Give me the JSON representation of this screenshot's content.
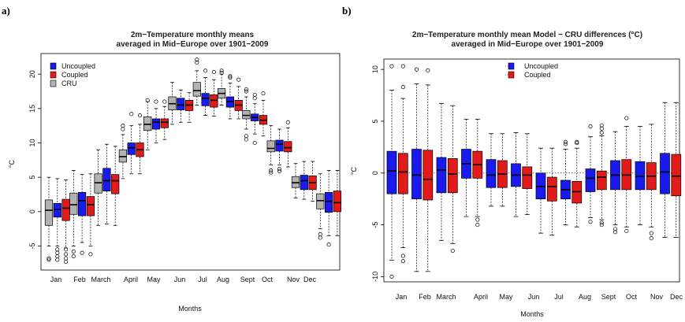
{
  "panels": [
    {
      "label": "a)",
      "title_lines": [
        "2m−Temperature monthly means",
        "averaged in Mid−Europe over 1901−2009"
      ]
    },
    {
      "label": "b)",
      "title_lines": [
        "2m−Temperature monthly mean Model − CRU differences (°C)",
        "averaged in Mid−Europe over 1901−2009"
      ]
    }
  ],
  "chart_data": [
    {
      "type": "boxplot",
      "xlabel": "Months",
      "ylabel": "°C",
      "ylim": [
        -8.5,
        23
      ],
      "yticks": [
        -5,
        0,
        5,
        10,
        15,
        20
      ],
      "xtick_labels": [
        "Jan",
        "Feb",
        "March",
        "April",
        "May",
        "Jun",
        "Jul",
        "Aug",
        "Sept",
        "Oct",
        "Nov",
        "Dec"
      ],
      "legend_position": "top-left",
      "series": [
        {
          "name": "Uncoupled",
          "color": "#1a1aee"
        },
        {
          "name": "Coupled",
          "color": "#e21a1a"
        },
        {
          "name": "CRU",
          "color": "#b3b3b3"
        }
      ],
      "series_order": [
        "CRU",
        "Uncoupled",
        "Coupled"
      ],
      "boxes": [
        [
          {
            "min": -5,
            "q1": -2,
            "med": 0.2,
            "q3": 1.7,
            "max": 5,
            "out": [
              -6.8,
              -7
            ]
          },
          {
            "min": -5,
            "q1": -0.8,
            "med": 0.3,
            "q3": 1.2,
            "max": 4.8,
            "out": [
              -5.5,
              -6,
              -6.5,
              -7
            ]
          },
          {
            "min": -5.3,
            "q1": -1.3,
            "med": 0.5,
            "q3": 1.8,
            "max": 4.6,
            "out": [
              -5.5,
              -6.2,
              -6.8,
              -7.3
            ]
          }
        ],
        [
          {
            "min": -5,
            "q1": -0.4,
            "med": 1,
            "q3": 2.7,
            "max": 6,
            "out": [
              -5.8,
              -6.5
            ]
          },
          {
            "min": -4.5,
            "q1": -0.6,
            "med": 1.6,
            "q3": 2.8,
            "max": 5.4,
            "out": [
              -6
            ]
          },
          {
            "min": -5,
            "q1": -0.6,
            "med": 1,
            "q3": 2.2,
            "max": 5.5,
            "out": [
              -6.2
            ]
          }
        ],
        [
          {
            "min": -2,
            "q1": 2.7,
            "med": 4.2,
            "q3": 5.5,
            "max": 9,
            "out": []
          },
          {
            "min": -1.8,
            "q1": 3,
            "med": 4.5,
            "q3": 6.3,
            "max": 9.8,
            "out": []
          },
          {
            "min": -2,
            "q1": 2.6,
            "med": 4.5,
            "q3": 5.4,
            "max": 9.5,
            "out": []
          }
        ],
        [
          {
            "min": 4.8,
            "q1": 7.2,
            "med": 8,
            "q3": 9,
            "max": 11.2,
            "out": [
              12,
              12.5
            ]
          },
          {
            "min": 5.5,
            "q1": 8.3,
            "med": 9.3,
            "q3": 10,
            "max": 12.5,
            "out": [
              14.2
            ]
          },
          {
            "min": 5.5,
            "q1": 8,
            "med": 9,
            "q3": 10,
            "max": 12.7,
            "out": [
              14
            ]
          }
        ],
        [
          {
            "min": 9,
            "q1": 11.8,
            "med": 12.7,
            "q3": 13.8,
            "max": 16,
            "out": [
              16.2
            ]
          },
          {
            "min": 10,
            "q1": 12,
            "med": 13,
            "q3": 13.5,
            "max": 15,
            "out": [
              16
            ]
          },
          {
            "min": 10.5,
            "q1": 12.2,
            "med": 13,
            "q3": 13.5,
            "max": 15.3,
            "out": [
              16
            ]
          }
        ],
        [
          {
            "min": 12.7,
            "q1": 14.8,
            "med": 15.7,
            "q3": 16.7,
            "max": 18.8,
            "out": []
          },
          {
            "min": 13,
            "q1": 14.8,
            "med": 15.5,
            "q3": 16.5,
            "max": 17.7,
            "out": []
          },
          {
            "min": 13,
            "q1": 14.7,
            "med": 15.5,
            "q3": 16.2,
            "max": 17.3,
            "out": []
          }
        ],
        [
          {
            "min": 15.5,
            "q1": 16.8,
            "med": 17.6,
            "q3": 18.8,
            "max": 20.5,
            "out": [
              21.7,
              22.1
            ]
          },
          {
            "min": 14,
            "q1": 15.4,
            "med": 16.5,
            "q3": 17.2,
            "max": 19.5,
            "out": [
              20.5
            ]
          },
          {
            "min": 13.9,
            "q1": 15.2,
            "med": 16.2,
            "q3": 17,
            "max": 19.2,
            "out": [
              20.3
            ]
          }
        ],
        [
          {
            "min": 15.5,
            "q1": 16.5,
            "med": 17.2,
            "q3": 17.9,
            "max": 20,
            "out": [
              20.5,
              20.2
            ]
          },
          {
            "min": 13.5,
            "q1": 15.2,
            "med": 16,
            "q3": 16.7,
            "max": 18.7,
            "out": [
              19.5,
              19.7
            ]
          },
          {
            "min": 13.5,
            "q1": 14.7,
            "med": 15.5,
            "q3": 16.2,
            "max": 18.2,
            "out": [
              19.2
            ]
          }
        ],
        [
          {
            "min": 12,
            "q1": 13.5,
            "med": 14,
            "q3": 14.7,
            "max": 16.7,
            "out": [
              17.5,
              17.8,
              11,
              10.5
            ]
          },
          {
            "min": 11.3,
            "q1": 13.2,
            "med": 13.7,
            "q3": 14.2,
            "max": 15.7,
            "out": [
              17,
              16.5,
              10
            ]
          },
          {
            "min": 11,
            "q1": 12.7,
            "med": 13.3,
            "q3": 14,
            "max": 16.2,
            "out": [
              17.2
            ]
          }
        ],
        [
          {
            "min": 6.8,
            "q1": 8.7,
            "med": 9.2,
            "q3": 10.3,
            "max": 12.5,
            "out": [
              6,
              5.7
            ]
          },
          {
            "min": 6.8,
            "q1": 8.8,
            "med": 9.8,
            "q3": 10.4,
            "max": 12,
            "out": [
              5.9,
              6.2
            ]
          },
          {
            "min": 6.5,
            "q1": 8.7,
            "med": 9.3,
            "q3": 10.2,
            "max": 12.2,
            "out": [
              13
            ]
          }
        ],
        [
          {
            "min": 2,
            "q1": 3.5,
            "med": 4.2,
            "q3": 5.1,
            "max": 7,
            "out": []
          },
          {
            "min": 1.8,
            "q1": 3.2,
            "med": 4.5,
            "q3": 5.3,
            "max": 7.3,
            "out": []
          },
          {
            "min": 1.5,
            "q1": 3.2,
            "med": 4.2,
            "q3": 5.2,
            "max": 7.3,
            "out": []
          }
        ],
        [
          {
            "min": -2.5,
            "q1": 0.4,
            "med": 1.6,
            "q3": 2.6,
            "max": 5.5,
            "out": [
              -3.3,
              -3.8
            ]
          },
          {
            "min": -3.5,
            "q1": -0.1,
            "med": 1.5,
            "q3": 2.8,
            "max": 6,
            "out": [
              -4.8
            ]
          },
          {
            "min": -3.5,
            "q1": 0,
            "med": 1.3,
            "q3": 3,
            "max": 6,
            "out": []
          }
        ]
      ]
    },
    {
      "type": "boxplot",
      "xlabel": "Months",
      "ylabel": "°C",
      "ylim": [
        -10.5,
        11
      ],
      "yticks": [
        -10,
        -5,
        0,
        5,
        10
      ],
      "xtick_labels": [
        "Jan",
        "Feb",
        "March",
        "April",
        "May",
        "Jun",
        "Jul",
        "Aug",
        "Sept",
        "Oct",
        "Nov",
        "Dec"
      ],
      "legend_position": "top-center",
      "reference_line": 0,
      "series": [
        {
          "name": "Uncoupled",
          "color": "#1a1aee"
        },
        {
          "name": "Coupled",
          "color": "#e21a1a"
        }
      ],
      "boxes": [
        [
          {
            "min": -8.4,
            "q1": -2,
            "med": 0.2,
            "q3": 2.1,
            "max": 8,
            "out": [
              10.3,
              -10
            ]
          },
          {
            "min": -7.2,
            "q1": -2,
            "med": 0.1,
            "q3": 1.9,
            "max": 7.2,
            "out": [
              10.3,
              8.3,
              -8,
              -8.5
            ]
          }
        ],
        [
          {
            "min": -9.5,
            "q1": -2.5,
            "med": -0.2,
            "q3": 2.3,
            "max": 8.6,
            "out": [
              10
            ]
          },
          {
            "min": -9.5,
            "q1": -2.6,
            "med": -0.6,
            "q3": 2.2,
            "max": 8.5,
            "out": [
              9.9
            ]
          }
        ],
        [
          {
            "min": -6.5,
            "q1": -1.9,
            "med": 0.3,
            "q3": 1.5,
            "max": 6.7,
            "out": []
          },
          {
            "min": -6.8,
            "q1": -1.9,
            "med": -0.1,
            "q3": 1.4,
            "max": 6.5,
            "out": [
              -7.5
            ]
          }
        ],
        [
          {
            "min": -4.2,
            "q1": -0.5,
            "med": 0.9,
            "q3": 2.3,
            "max": 5.2,
            "out": []
          },
          {
            "min": -4.2,
            "q1": -0.5,
            "med": 0.8,
            "q3": 2.1,
            "max": 5.2,
            "out": [
              -4.5,
              -5
            ]
          }
        ],
        [
          {
            "min": -3.2,
            "q1": -1.4,
            "med": -0.2,
            "q3": 1.3,
            "max": 3.8,
            "out": []
          },
          {
            "min": -3.2,
            "q1": -1.4,
            "med": -0.1,
            "q3": 1.2,
            "max": 3.8,
            "out": []
          }
        ],
        [
          {
            "min": -4.2,
            "q1": -1.3,
            "med": -0.2,
            "q3": 0.9,
            "max": 3.9,
            "out": []
          },
          {
            "min": -4,
            "q1": -1.5,
            "med": -0.2,
            "q3": 0.6,
            "max": 3.8,
            "out": []
          }
        ],
        [
          {
            "min": -5.8,
            "q1": -2.5,
            "med": -1.3,
            "q3": 0,
            "max": 2.4,
            "out": []
          },
          {
            "min": -6,
            "q1": -2.7,
            "med": -1.3,
            "q3": -0.4,
            "max": 2.4,
            "out": []
          }
        ],
        [
          {
            "min": -5,
            "q1": -2.5,
            "med": -1.6,
            "q3": -0.7,
            "max": 2.3,
            "out": [
              3,
              2.8
            ]
          },
          {
            "min": -5.2,
            "q1": -2.9,
            "med": -1.8,
            "q3": -0.8,
            "max": 2.4,
            "out": [
              3,
              2.9
            ]
          }
        ],
        [
          {
            "min": -4.3,
            "q1": -1.8,
            "med": -0.5,
            "q3": 0.4,
            "max": 3.5,
            "out": [
              4.5,
              -4.7
            ]
          },
          {
            "min": -4.5,
            "q1": -1.6,
            "med": -0.4,
            "q3": 0.2,
            "max": 3.6,
            "out": [
              4.6,
              4.3,
              3.9,
              -4.8,
              -5
            ]
          }
        ],
        [
          {
            "min": -5,
            "q1": -1.6,
            "med": -0.2,
            "q3": 1.2,
            "max": 4,
            "out": [
              -5.4,
              -5.7
            ]
          },
          {
            "min": -5.2,
            "q1": -1.6,
            "med": -0.2,
            "q3": 1.3,
            "max": 4.5,
            "out": [
              5.3,
              -5.6
            ]
          }
        ],
        [
          {
            "min": -5,
            "q1": -1.6,
            "med": -0.3,
            "q3": 1.1,
            "max": 4.5,
            "out": []
          },
          {
            "min": -5.2,
            "q1": -1.6,
            "med": -0.3,
            "q3": 1,
            "max": 4.7,
            "out": [
              -5.8,
              -6.3
            ]
          }
        ],
        [
          {
            "min": -6.2,
            "q1": -2,
            "med": 0.1,
            "q3": 1.9,
            "max": 6.8,
            "out": []
          },
          {
            "min": -6.2,
            "q1": -2.2,
            "med": -0.3,
            "q3": 1.8,
            "max": 6.8,
            "out": []
          }
        ]
      ]
    }
  ]
}
